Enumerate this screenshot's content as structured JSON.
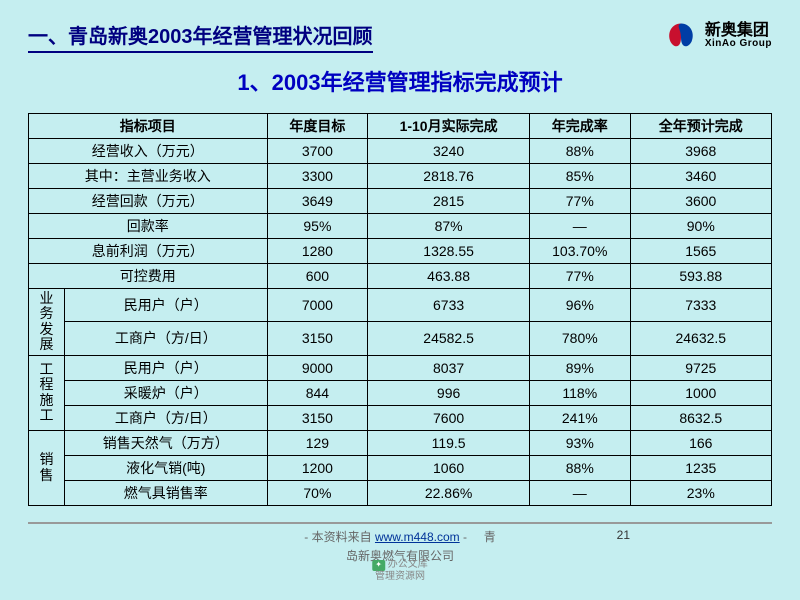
{
  "header": {
    "section_title": "一、青岛新奥2003年经营管理状况回顾",
    "logo_cn": "新奥集团",
    "logo_en": "XinAo Group"
  },
  "subtitle": "1、2003年经营管理指标完成预计",
  "table": {
    "columns": [
      "指标项目",
      "年度目标",
      "1-10月实际完成",
      "年完成率",
      "全年预计完成"
    ],
    "plain_rows": [
      {
        "label": "经营收入（万元）",
        "v": [
          "3700",
          "3240",
          "88%",
          "3968"
        ]
      },
      {
        "label": "其中：主营业务收入",
        "v": [
          "3300",
          "2818.76",
          "85%",
          "3460"
        ]
      },
      {
        "label": "经营回款（万元）",
        "v": [
          "3649",
          "2815",
          "77%",
          "3600"
        ]
      },
      {
        "label": "回款率",
        "v": [
          "95%",
          "87%",
          "—",
          "90%"
        ]
      },
      {
        "label": "息前利润（万元）",
        "v": [
          "1280",
          "1328.55",
          "103.70%",
          "1565"
        ]
      },
      {
        "label": "可控费用",
        "v": [
          "600",
          "463.88",
          "77%",
          "593.88"
        ]
      }
    ],
    "groups": [
      {
        "category": "业务发展",
        "rows": [
          {
            "label": "民用户（户）",
            "v": [
              "7000",
              "6733",
              "96%",
              "7333"
            ]
          },
          {
            "label": "工商户（方/日）",
            "v": [
              "3150",
              "24582.5",
              "780%",
              "24632.5"
            ]
          }
        ]
      },
      {
        "category": "工程施工",
        "rows": [
          {
            "label": "民用户（户）",
            "v": [
              "9000",
              "8037",
              "89%",
              "9725"
            ]
          },
          {
            "label": "采暖炉（户）",
            "v": [
              "844",
              "996",
              "118%",
              "1000"
            ]
          },
          {
            "label": "工商户（方/日）",
            "v": [
              "3150",
              "7600",
              "241%",
              "8632.5"
            ]
          }
        ]
      },
      {
        "category": "销售",
        "rows": [
          {
            "label": "销售天然气（万方）",
            "v": [
              "129",
              "119.5",
              "93%",
              "166"
            ]
          },
          {
            "label": "液化气销(吨)",
            "v": [
              "1200",
              "1060",
              "88%",
              "1235"
            ]
          },
          {
            "label": "燃气具销售率",
            "v": [
              "70%",
              "22.86%",
              "—",
              "23%"
            ]
          }
        ]
      }
    ]
  },
  "footer": {
    "source_prefix": "- 本资料来自 ",
    "source_link": "www.m448.com",
    "source_suffix": " -",
    "extra": "青",
    "extra2": "岛新奥燃气有限公司",
    "page_number": "21",
    "watermark_label": "办公文库",
    "watermark_brand": "管理资源网"
  },
  "style": {
    "background": "#c5eef0",
    "title_color": "#000080",
    "subtitle_color": "#0000c0",
    "border_color": "#000000",
    "logo_red": "#c8102e",
    "logo_blue": "#003da5"
  }
}
